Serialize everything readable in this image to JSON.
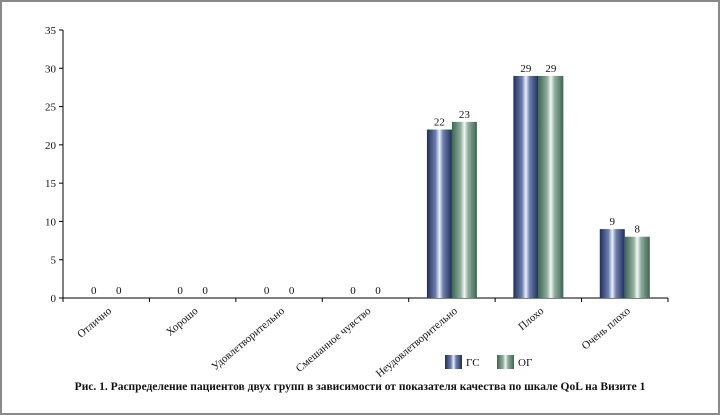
{
  "chart_data": {
    "type": "bar",
    "title": "Рис. 1. Распределение пациентов двух групп в зависимости от показателя качества по шкале QoL на Визите 1",
    "xlabel": "",
    "ylabel": "",
    "ylim": [
      0,
      35
    ],
    "yticks": [
      0,
      5,
      10,
      15,
      20,
      25,
      30,
      35
    ],
    "grid": false,
    "legend_position": "bottom-center",
    "categories": [
      "Отлично",
      "Хорошо",
      "Удовлетворительно",
      "Смешанное чувство",
      "Неудовлетворительно",
      "Плохо",
      "Очень плохо"
    ],
    "series": [
      {
        "name": "ГС",
        "color": "#2c3f6e",
        "values": [
          0,
          0,
          0,
          0,
          22,
          29,
          9
        ]
      },
      {
        "name": "ОГ",
        "color": "#4f7a62",
        "values": [
          0,
          0,
          0,
          0,
          23,
          29,
          8
        ]
      }
    ]
  }
}
